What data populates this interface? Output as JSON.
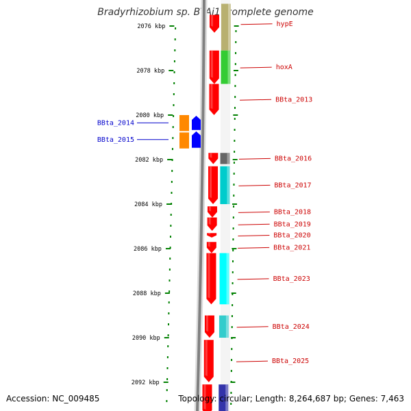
{
  "title": "Bradyrhizobium sp. BTAi1, complete genome",
  "footer": {
    "accession": "Accession: NC_009485",
    "summary": "Topology: circular; Length: 8,264,687 bp; Genes: 7,463"
  },
  "colors": {
    "forward_cds": "#ff0000",
    "reverse_cds_left": "#0000ff",
    "label_right": "#cc0000",
    "label_left": "#0000cc",
    "tick": "#008000",
    "backbone": "#808080"
  },
  "ruler": {
    "unit": "kbp",
    "ticks": [
      {
        "kbp": 2076,
        "label": "2076 kbp"
      },
      {
        "kbp": 2078,
        "label": "2078 kbp"
      },
      {
        "kbp": 2080,
        "label": "2080 kbp"
      },
      {
        "kbp": 2082,
        "label": "2082 kbp"
      },
      {
        "kbp": 2084,
        "label": "2084 kbp"
      },
      {
        "kbp": 2086,
        "label": "2086 kbp"
      },
      {
        "kbp": 2088,
        "label": "2088 kbp"
      },
      {
        "kbp": 2090,
        "label": "2090 kbp"
      },
      {
        "kbp": 2092,
        "label": "2092 kbp"
      }
    ]
  },
  "forward_genes": [
    {
      "label": "hypE",
      "start_kbp": 2075.5,
      "end_kbp": 2076.3
    },
    {
      "label": "hoxA",
      "start_kbp": 2077.1,
      "end_kbp": 2078.6
    },
    {
      "label": "BBta_2013",
      "start_kbp": 2078.6,
      "end_kbp": 2080.0
    },
    {
      "label": "BBta_2016",
      "start_kbp": 2081.7,
      "end_kbp": 2082.2
    },
    {
      "label": "BBta_2017",
      "start_kbp": 2082.3,
      "end_kbp": 2084.0
    },
    {
      "label": "BBta_2018",
      "start_kbp": 2084.1,
      "end_kbp": 2084.6
    },
    {
      "label": "BBta_2019",
      "start_kbp": 2084.6,
      "end_kbp": 2085.2
    },
    {
      "label": "BBta_2020",
      "start_kbp": 2085.3,
      "end_kbp": 2085.5
    },
    {
      "label": "BBta_2021",
      "start_kbp": 2085.7,
      "end_kbp": 2086.2
    },
    {
      "label": "BBta_2023",
      "start_kbp": 2086.2,
      "end_kbp": 2088.5
    },
    {
      "label": "BBta_2024",
      "start_kbp": 2089.0,
      "end_kbp": 2090.0
    },
    {
      "label": "BBta_2025",
      "start_kbp": 2090.1,
      "end_kbp": 2092.0
    },
    {
      "label": "",
      "start_kbp": 2092.1,
      "end_kbp": 2093.5
    }
  ],
  "reverse_genes": [
    {
      "label": "BBta_2014",
      "start_kbp": 2080.0,
      "end_kbp": 2080.7
    },
    {
      "label": "BBta_2015",
      "start_kbp": 2080.7,
      "end_kbp": 2081.5
    }
  ],
  "features_right": [
    {
      "color": "#b8b070",
      "start_kbp": 2075.0,
      "end_kbp": 2077.1
    },
    {
      "color": "#33cc33",
      "start_kbp": 2077.1,
      "end_kbp": 2078.6
    },
    {
      "color": "#666666",
      "start_kbp": 2081.7,
      "end_kbp": 2082.2
    },
    {
      "color": "#00cccc",
      "start_kbp": 2082.3,
      "end_kbp": 2084.0
    },
    {
      "color": "#00ffff",
      "start_kbp": 2086.2,
      "end_kbp": 2088.5
    },
    {
      "color": "#33cccc",
      "start_kbp": 2089.0,
      "end_kbp": 2090.0
    },
    {
      "color": "#3333aa",
      "start_kbp": 2092.1,
      "end_kbp": 2093.5
    }
  ],
  "features_left": [
    {
      "color": "#ff8800",
      "start_kbp": 2080.0,
      "end_kbp": 2081.5
    }
  ]
}
